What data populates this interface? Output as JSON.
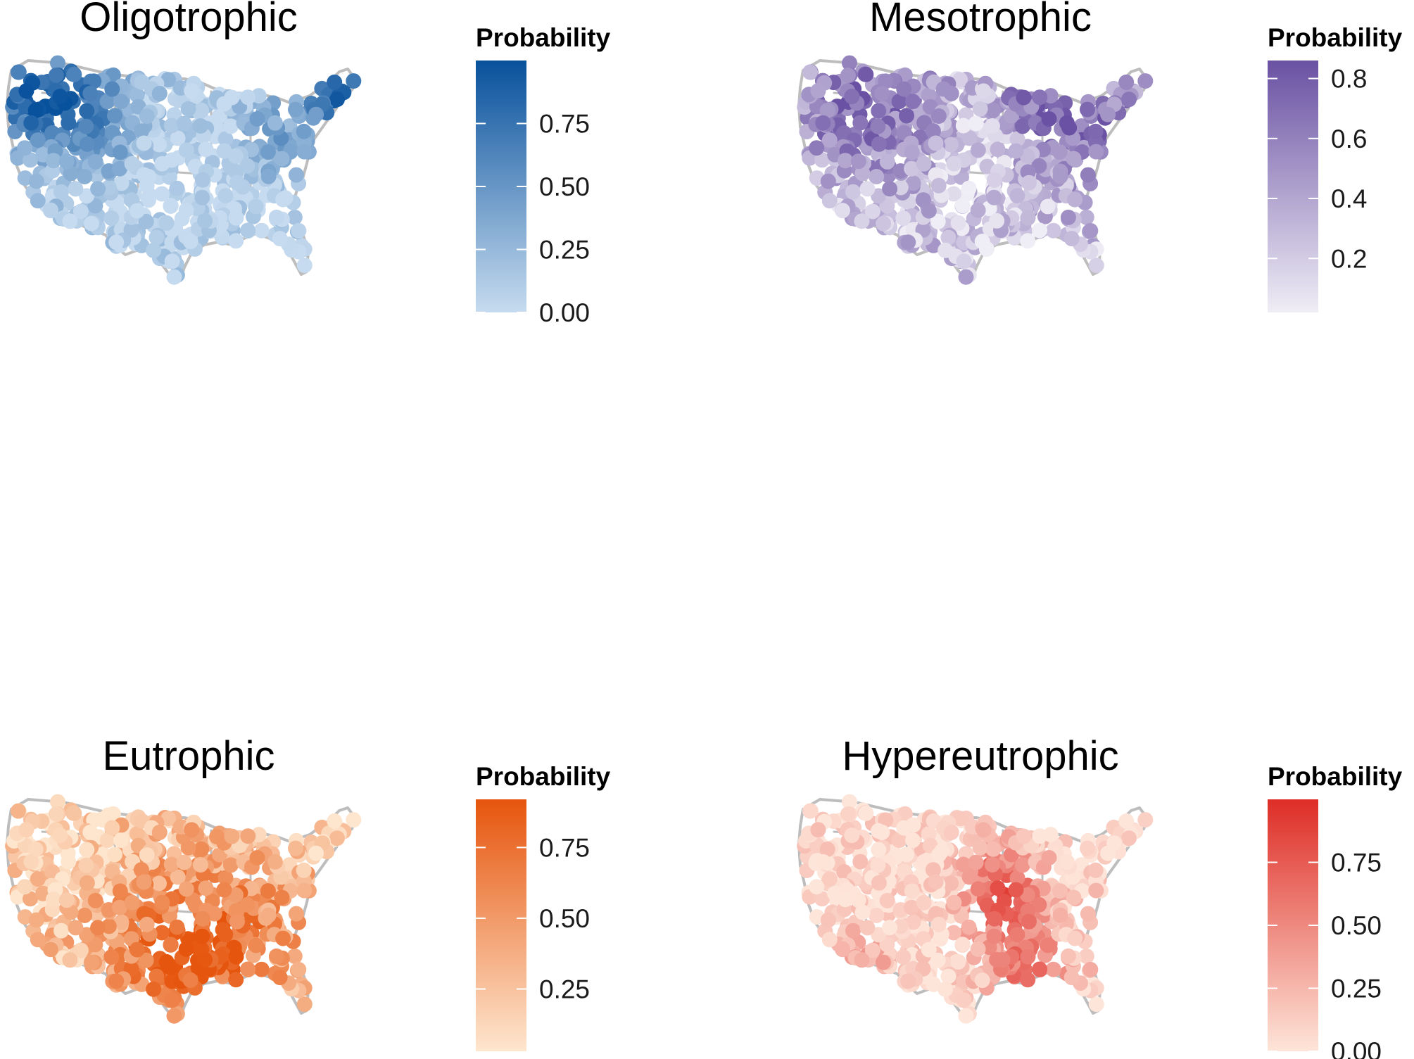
{
  "figure": {
    "panels": [
      {
        "id": "oligotrophic",
        "title": "Oligotrophic",
        "legend_title": "Probability",
        "color_low": "#c6dbef",
        "color_high": "#08519c",
        "range": [
          0,
          1
        ],
        "ticks": [
          0.0,
          0.25,
          0.5,
          0.75
        ],
        "tick_labels": [
          "0.00",
          "0.25",
          "0.50",
          "0.75"
        ],
        "pattern": "oligotrophic"
      },
      {
        "id": "mesotrophic",
        "title": "Mesotrophic",
        "legend_title": "Probability",
        "color_low": "#efedf5",
        "color_high": "#6a51a3",
        "range": [
          0.02,
          0.86
        ],
        "ticks": [
          0.2,
          0.4,
          0.6,
          0.8
        ],
        "tick_labels": [
          "0.2",
          "0.4",
          "0.6",
          "0.8"
        ],
        "pattern": "mesotrophic"
      },
      {
        "id": "eutrophic",
        "title": "Eutrophic",
        "legend_title": "Probability",
        "color_low": "#fee6ce",
        "color_high": "#e6550d",
        "range": [
          0.03,
          0.92
        ],
        "ticks": [
          0.25,
          0.5,
          0.75
        ],
        "tick_labels": [
          "0.25",
          "0.50",
          "0.75"
        ],
        "pattern": "eutrophic"
      },
      {
        "id": "hypereutrophic",
        "title": "Hypereutrophic",
        "legend_title": "Probability",
        "color_low": "#fee5d9",
        "color_high": "#de2d26",
        "range": [
          0,
          1
        ],
        "ticks": [
          0.0,
          0.25,
          0.5,
          0.75
        ],
        "tick_labels": [
          "0.00",
          "0.25",
          "0.50",
          "0.75"
        ],
        "pattern": "hypereutrophic"
      }
    ]
  }
}
